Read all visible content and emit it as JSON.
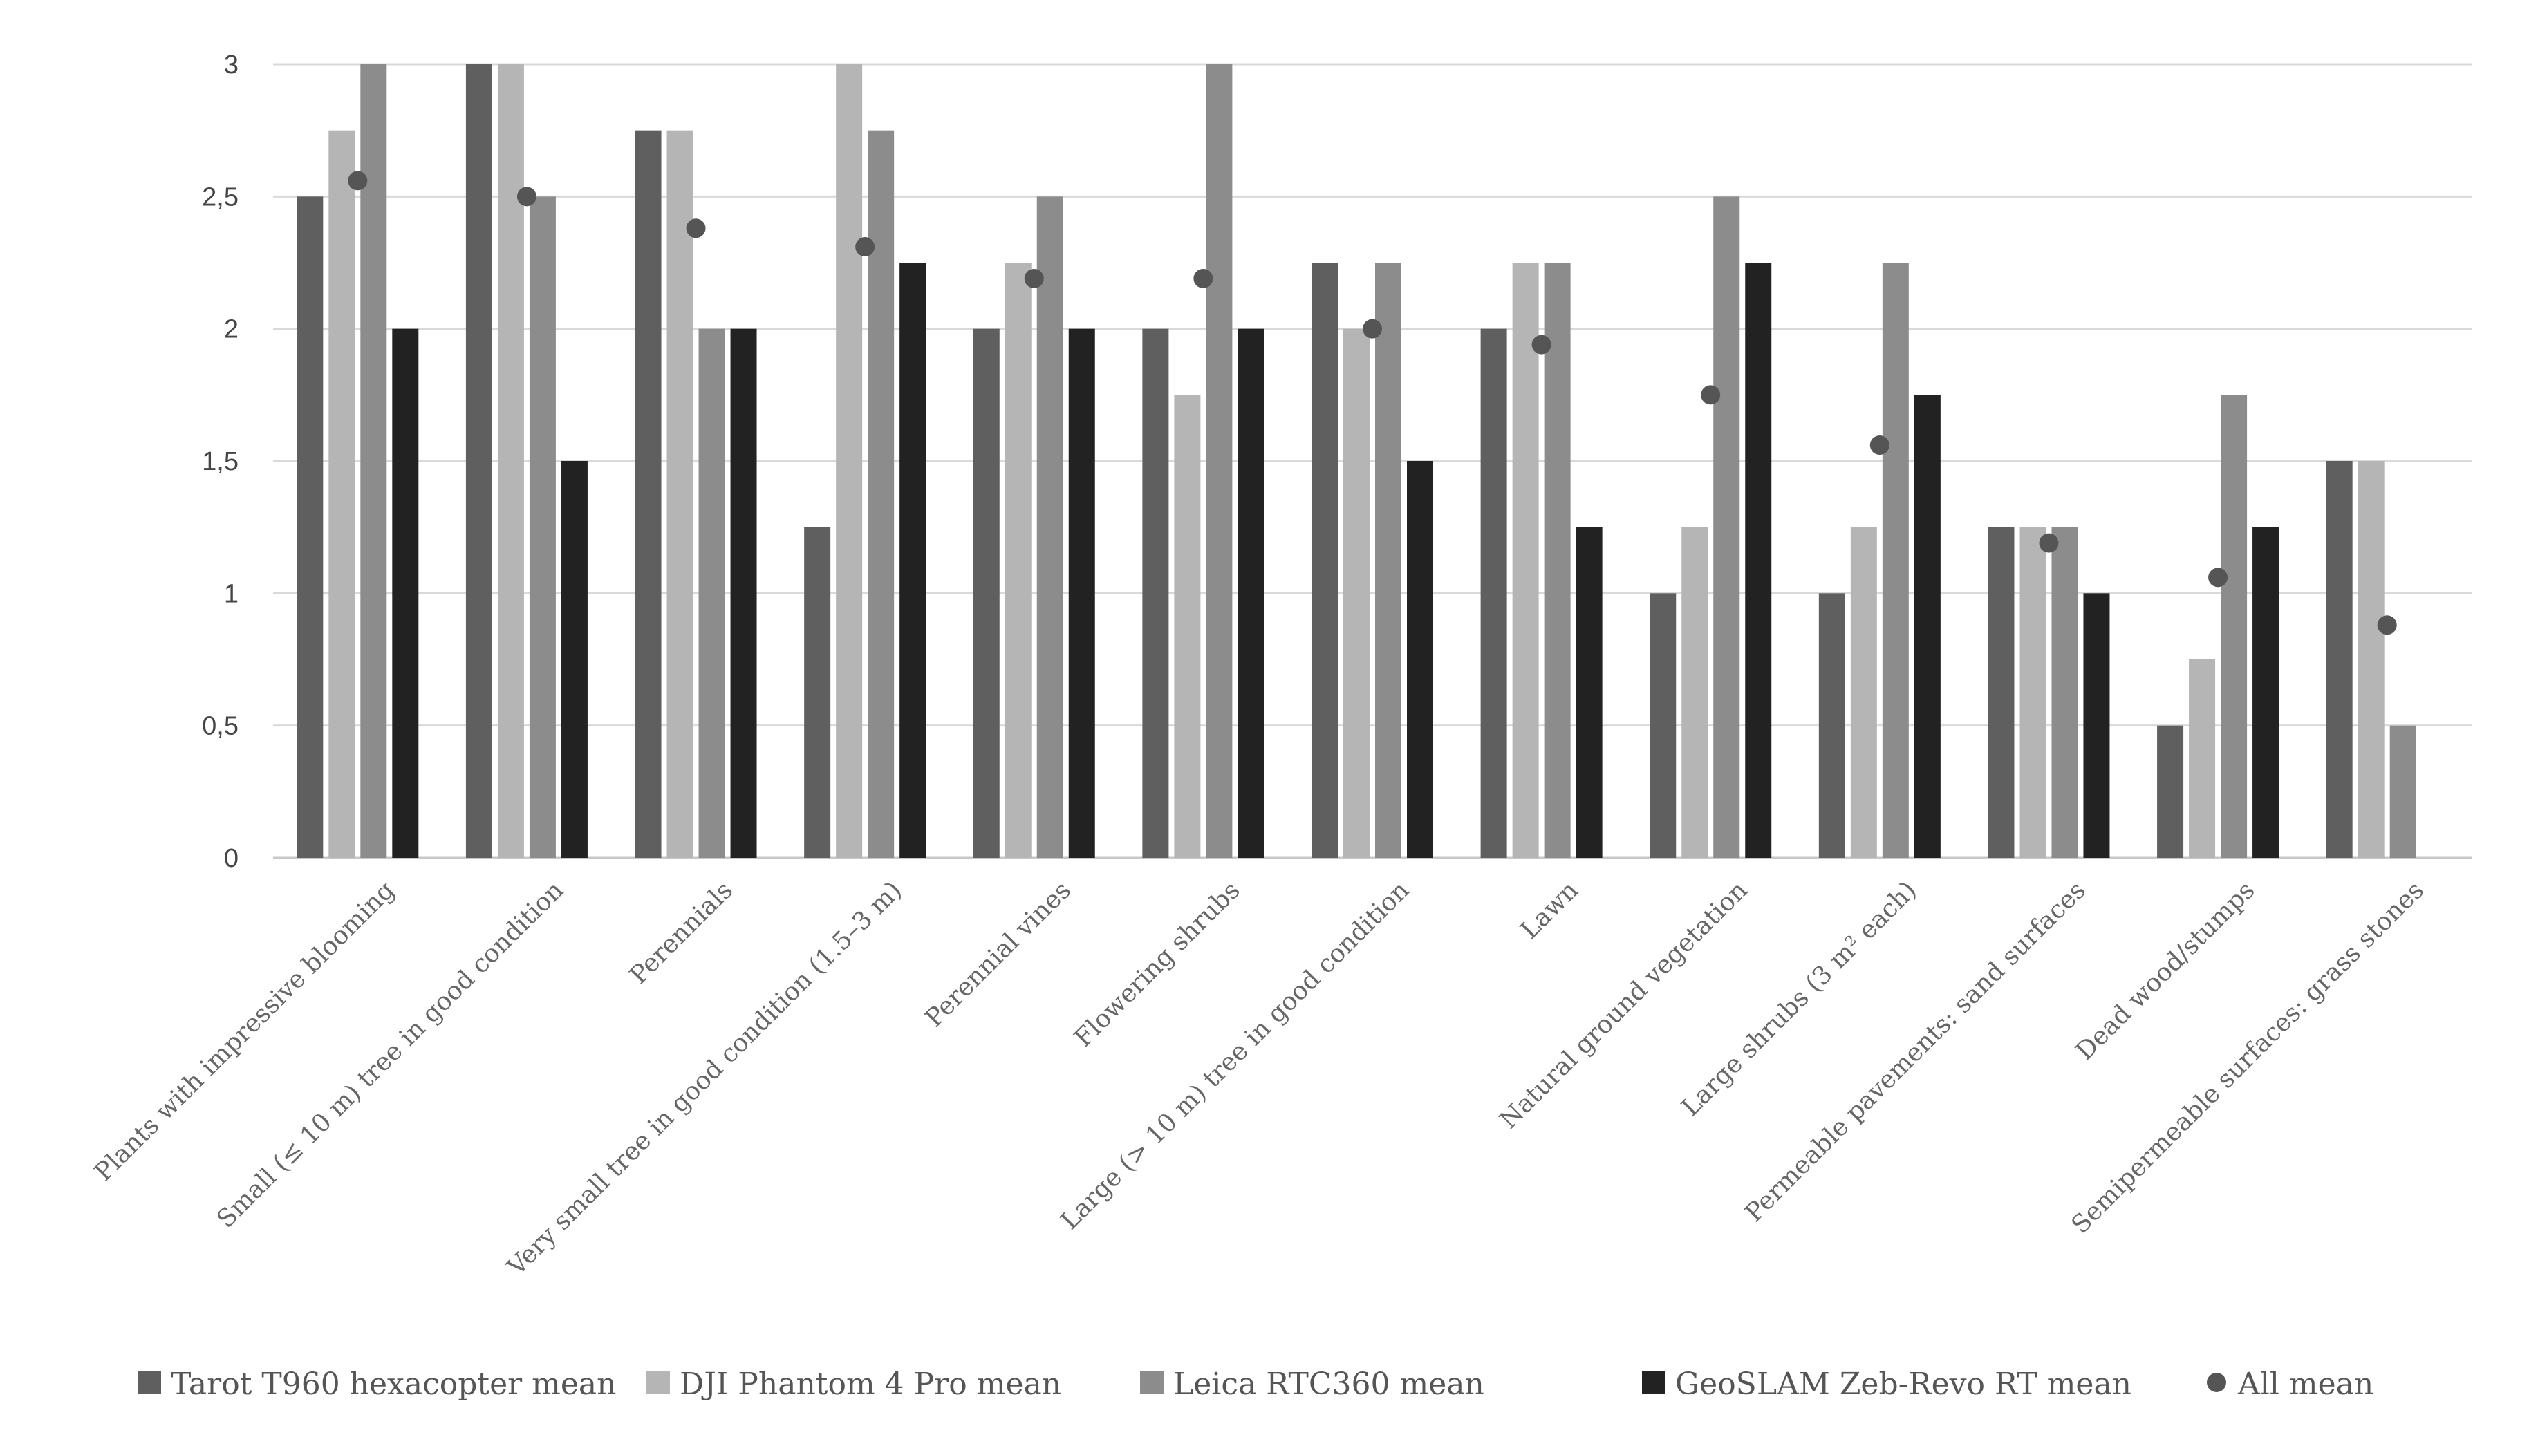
{
  "chart_data": {
    "type": "bar",
    "title": "",
    "xlabel": "",
    "ylabel": "",
    "ylim": [
      0,
      3
    ],
    "yticks": [
      {
        "v": 0,
        "label": "0"
      },
      {
        "v": 0.5,
        "label": "0,5"
      },
      {
        "v": 1,
        "label": "1"
      },
      {
        "v": 1.5,
        "label": "1,5"
      },
      {
        "v": 2,
        "label": "2"
      },
      {
        "v": 2.5,
        "label": "2,5"
      },
      {
        "v": 3,
        "label": "3"
      }
    ],
    "grid": true,
    "legend_position": "bottom",
    "categories": [
      "Plants with impressive blooming",
      "Small (≤ 10 m) tree in good condition",
      "Perennials",
      "Very small tree in good condition (1.5–3 m)",
      "Perennial vines",
      "Flowering shrubs",
      "Large (> 10 m) tree in good condition",
      "Lawn",
      "Natural ground vegetation",
      "Large shrubs (3 m² each)",
      "Permeable pavements: sand surfaces",
      "Dead wood/stumps",
      "Semipermeable surfaces: grass stones"
    ],
    "series": [
      {
        "name": "Tarot T960 hexacopter mean",
        "color": "#5f5f5f",
        "values": [
          2.5,
          3,
          2.75,
          1.25,
          2,
          2,
          2.25,
          2,
          1,
          1,
          1.25,
          0.5,
          1.5
        ]
      },
      {
        "name": "DJI Phantom 4 Pro mean",
        "color": "#b5b5b5",
        "values": [
          2.75,
          3,
          2.75,
          3,
          2.25,
          1.75,
          2,
          2.25,
          1.25,
          1.25,
          1.25,
          0.75,
          1.5
        ]
      },
      {
        "name": "Leica RTC360 mean",
        "color": "#8c8c8c",
        "values": [
          3,
          2.5,
          2,
          2.75,
          2.5,
          3,
          2.25,
          2.25,
          2.5,
          2.25,
          1.25,
          1.75,
          0.5
        ]
      },
      {
        "name": "GeoSLAM Zeb-Revo RT mean",
        "color": "#222222",
        "values": [
          2,
          1.5,
          2,
          2.25,
          2,
          2,
          1.5,
          1.25,
          2.25,
          1.75,
          1,
          1.25,
          0
        ]
      }
    ],
    "all_mean": {
      "name": "All mean",
      "color": "#555555",
      "values": [
        2.56,
        2.5,
        2.38,
        2.31,
        2.19,
        2.19,
        2.0,
        1.94,
        1.75,
        1.56,
        1.19,
        1.06,
        0.88
      ]
    }
  }
}
